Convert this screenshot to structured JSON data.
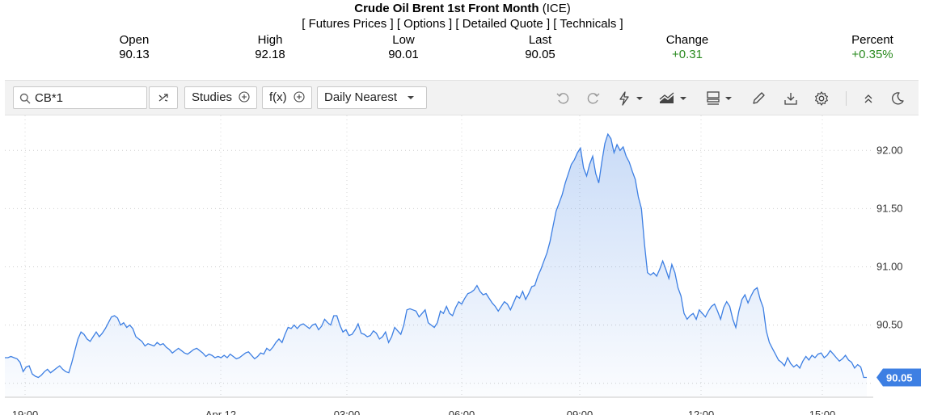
{
  "header": {
    "title_bold": "Crude Oil Brent 1st Front Month",
    "title_suffix": " (ICE)",
    "links": [
      "[ Futures Prices ]",
      "[ Options ]",
      "[ Detailed Quote ]",
      "[ Technicals ]"
    ]
  },
  "quote": [
    {
      "label": "Open",
      "value": "90.13",
      "color": "#000000"
    },
    {
      "label": "High",
      "value": "92.18",
      "color": "#000000"
    },
    {
      "label": "Low",
      "value": "90.01",
      "color": "#000000"
    },
    {
      "label": "Last",
      "value": "90.05",
      "color": "#000000"
    },
    {
      "label": "Change",
      "value": "+0.31",
      "color": "#2a8a1f"
    },
    {
      "label": "Percent",
      "value": "+0.35%",
      "color": "#2a8a1f"
    }
  ],
  "toolbar": {
    "search_value": "CB*1",
    "studies_label": "Studies",
    "fx_label": "f(x)",
    "aggregation_label": "Daily Nearest",
    "icons": [
      "search-icon",
      "compare-icon",
      "plus-circle-icon",
      "chevron-down-icon",
      "undo-icon",
      "redo-icon",
      "lightning-icon",
      "chart-type-icon",
      "layout-icon",
      "pencil-icon",
      "download-icon",
      "gear-icon",
      "collapse-icon",
      "moon-icon"
    ]
  },
  "chart_data": {
    "type": "area",
    "title": "",
    "xlabel": "",
    "ylabel": "",
    "x_ticks": [
      "19:00",
      "Apr 12",
      "03:00",
      "06:00",
      "09:00",
      "12:00",
      "15:00"
    ],
    "y_ticks": [
      90.5,
      91.0,
      91.5,
      92.0
    ],
    "ylim": [
      89.88,
      92.3
    ],
    "last_value_label": "90.05",
    "line_color": "#3d7fe3",
    "accent_color": "#3d7fe3",
    "grid": true,
    "series": [
      {
        "values": [
          90.22,
          90.22,
          90.23,
          90.22,
          90.21,
          90.18,
          90.1,
          90.14,
          90.15,
          90.08,
          90.06,
          90.05,
          90.07,
          90.1,
          90.12,
          90.09,
          90.11,
          90.13,
          90.15,
          90.12,
          90.1,
          90.09,
          90.18,
          90.28,
          90.38,
          90.44,
          90.42,
          90.38,
          90.36,
          90.4,
          90.44,
          90.4,
          90.43,
          90.47,
          90.52,
          90.57,
          90.58,
          90.56,
          90.5,
          90.52,
          90.48,
          90.5,
          90.47,
          90.4,
          90.38,
          90.36,
          90.32,
          90.34,
          90.33,
          90.32,
          90.35,
          90.33,
          90.34,
          90.31,
          90.29,
          90.26,
          90.28,
          90.3,
          90.28,
          90.26,
          90.25,
          90.27,
          90.29,
          90.3,
          90.28,
          90.26,
          90.23,
          90.25,
          90.24,
          90.22,
          90.23,
          90.22,
          90.24,
          90.22,
          90.25,
          90.23,
          90.21,
          90.22,
          90.24,
          90.26,
          90.27,
          90.24,
          90.21,
          90.23,
          90.26,
          90.25,
          90.3,
          90.28,
          90.31,
          90.35,
          90.38,
          90.35,
          90.42,
          90.48,
          90.47,
          90.5,
          90.47,
          90.5,
          90.51,
          90.49,
          90.47,
          90.5,
          90.51,
          90.46,
          90.49,
          90.55,
          90.52,
          90.5,
          90.58,
          90.58,
          90.5,
          90.44,
          90.46,
          90.41,
          90.42,
          90.46,
          90.51,
          90.43,
          90.42,
          90.4,
          90.41,
          90.45,
          90.43,
          90.38,
          90.4,
          90.44,
          90.35,
          90.4,
          90.48,
          90.45,
          90.42,
          90.5,
          90.63,
          90.64,
          90.63,
          90.62,
          90.57,
          90.6,
          90.63,
          90.52,
          90.5,
          90.48,
          90.52,
          90.62,
          90.6,
          90.66,
          90.6,
          90.58,
          90.65,
          90.7,
          90.68,
          90.73,
          90.77,
          90.78,
          90.8,
          90.84,
          90.79,
          90.76,
          90.77,
          90.73,
          90.69,
          90.66,
          90.62,
          90.66,
          90.7,
          90.68,
          90.63,
          90.69,
          90.75,
          90.73,
          90.79,
          90.72,
          90.77,
          90.83,
          90.84,
          90.92,
          90.98,
          91.05,
          91.12,
          91.22,
          91.35,
          91.48,
          91.55,
          91.62,
          91.72,
          91.8,
          91.88,
          91.92,
          91.98,
          92.02,
          91.85,
          91.78,
          91.88,
          91.95,
          91.8,
          91.72,
          91.9,
          92.06,
          92.14,
          92.1,
          91.98,
          92.05,
          92.0,
          92.03,
          91.95,
          91.9,
          91.82,
          91.75,
          91.6,
          91.5,
          91.2,
          90.95,
          90.93,
          90.95,
          90.92,
          90.98,
          91.05,
          90.98,
          90.9,
          91.02,
          90.95,
          90.82,
          90.75,
          90.6,
          90.55,
          90.58,
          90.6,
          90.55,
          90.63,
          90.6,
          90.57,
          90.62,
          90.66,
          90.68,
          90.62,
          90.55,
          90.65,
          90.7,
          90.66,
          90.55,
          90.48,
          90.62,
          90.72,
          90.76,
          90.69,
          90.75,
          90.8,
          90.82,
          90.72,
          90.65,
          90.45,
          90.35,
          90.3,
          90.25,
          90.2,
          90.18,
          90.15,
          90.22,
          90.17,
          90.14,
          90.16,
          90.13,
          90.19,
          90.23,
          90.2,
          90.24,
          90.22,
          90.25,
          90.26,
          90.22,
          90.24,
          90.28,
          90.25,
          90.22,
          90.19,
          90.21,
          90.24,
          90.2,
          90.18,
          90.13,
          90.16,
          90.14,
          90.05,
          90.05
        ]
      }
    ]
  }
}
